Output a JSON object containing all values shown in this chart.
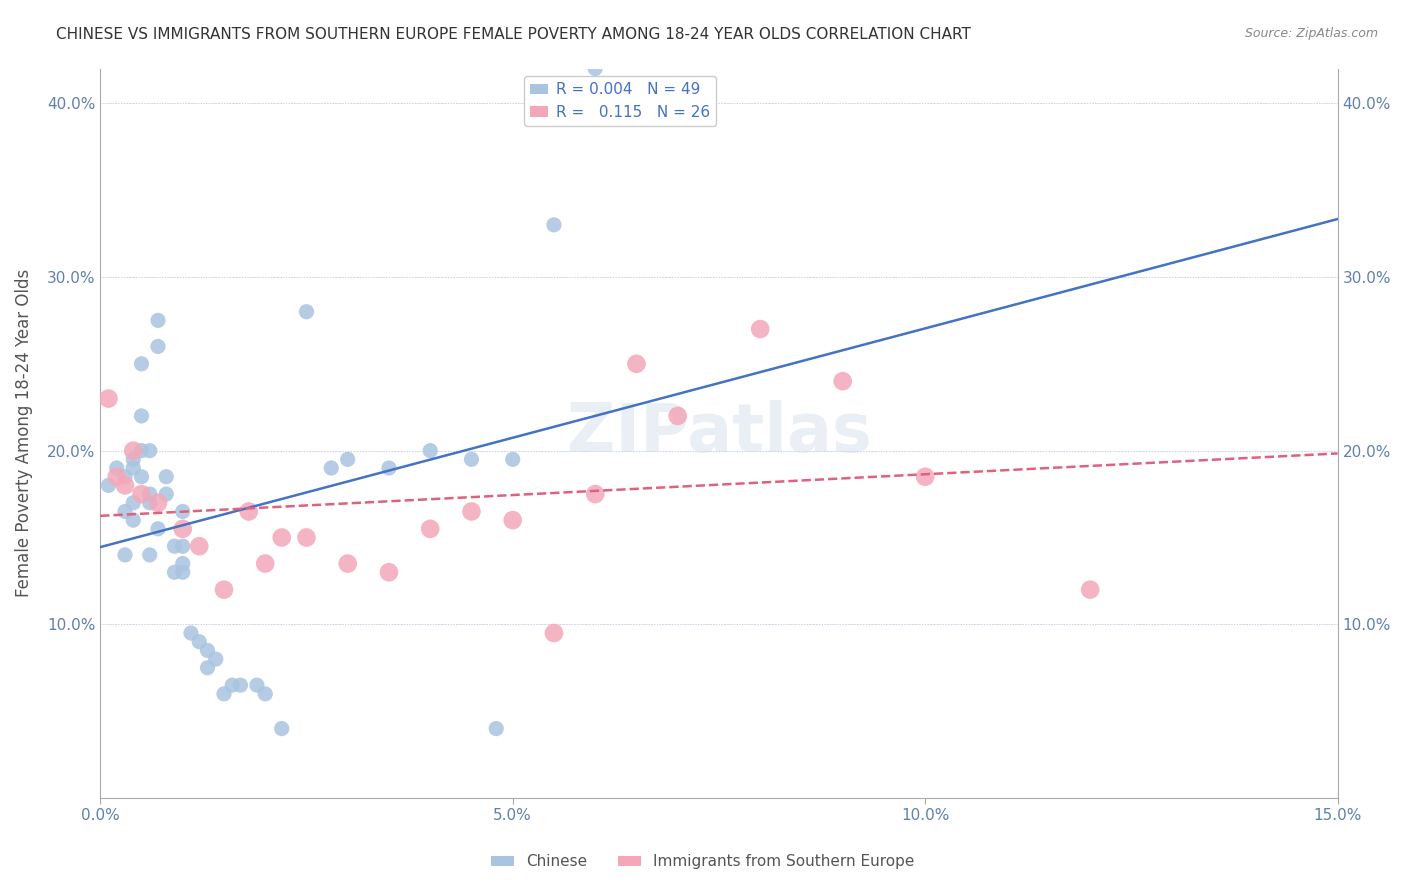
{
  "title": "CHINESE VS IMMIGRANTS FROM SOUTHERN EUROPE FEMALE POVERTY AMONG 18-24 YEAR OLDS CORRELATION CHART",
  "source": "Source: ZipAtlas.com",
  "xlabel": "",
  "ylabel": "Female Poverty Among 18-24 Year Olds",
  "xlim": [
    0.0,
    0.15
  ],
  "ylim": [
    0.0,
    0.42
  ],
  "xticks": [
    0.0,
    0.05,
    0.1,
    0.15
  ],
  "xticklabels": [
    "0.0%",
    "5.0%",
    "10.0%",
    "15.0%"
  ],
  "yticks": [
    0.0,
    0.1,
    0.2,
    0.3,
    0.4
  ],
  "yticklabels": [
    "",
    "10.0%",
    "20.0%",
    "30.0%",
    "40.0%"
  ],
  "chinese_R": 0.004,
  "chinese_N": 49,
  "southern_europe_R": 0.115,
  "southern_europe_N": 26,
  "chinese_color": "#a8c4e0",
  "southern_europe_color": "#f4a7b9",
  "chinese_line_color": "#4472c4",
  "southern_europe_line_color": "#e06080",
  "legend_label_chinese": "Chinese",
  "legend_label_southern": "Immigrants from Southern Europe",
  "watermark": "ZIPatlas",
  "chinese_x": [
    0.001,
    0.002,
    0.003,
    0.003,
    0.003,
    0.004,
    0.004,
    0.004,
    0.004,
    0.005,
    0.005,
    0.005,
    0.005,
    0.006,
    0.006,
    0.006,
    0.006,
    0.007,
    0.007,
    0.007,
    0.008,
    0.008,
    0.009,
    0.009,
    0.01,
    0.01,
    0.01,
    0.01,
    0.011,
    0.012,
    0.013,
    0.013,
    0.014,
    0.015,
    0.016,
    0.017,
    0.019,
    0.02,
    0.022,
    0.025,
    0.028,
    0.03,
    0.035,
    0.04,
    0.045,
    0.048,
    0.05,
    0.055,
    0.06
  ],
  "chinese_y": [
    0.18,
    0.19,
    0.14,
    0.165,
    0.185,
    0.19,
    0.195,
    0.17,
    0.16,
    0.185,
    0.2,
    0.22,
    0.25,
    0.175,
    0.14,
    0.17,
    0.2,
    0.275,
    0.26,
    0.155,
    0.185,
    0.175,
    0.13,
    0.145,
    0.13,
    0.135,
    0.165,
    0.145,
    0.095,
    0.09,
    0.085,
    0.075,
    0.08,
    0.06,
    0.065,
    0.065,
    0.065,
    0.06,
    0.04,
    0.28,
    0.19,
    0.195,
    0.19,
    0.2,
    0.195,
    0.04,
    0.195,
    0.33,
    0.42
  ],
  "southern_x": [
    0.001,
    0.002,
    0.003,
    0.004,
    0.005,
    0.007,
    0.01,
    0.012,
    0.015,
    0.018,
    0.02,
    0.022,
    0.025,
    0.03,
    0.035,
    0.04,
    0.045,
    0.05,
    0.055,
    0.06,
    0.065,
    0.07,
    0.08,
    0.09,
    0.1,
    0.12
  ],
  "southern_y": [
    0.23,
    0.185,
    0.18,
    0.2,
    0.175,
    0.17,
    0.155,
    0.145,
    0.12,
    0.165,
    0.135,
    0.15,
    0.15,
    0.135,
    0.13,
    0.155,
    0.165,
    0.16,
    0.095,
    0.175,
    0.25,
    0.22,
    0.27,
    0.24,
    0.185,
    0.12
  ],
  "background_color": "#ffffff",
  "grid_color": "#d0d8e8",
  "title_color": "#333333",
  "axis_label_color": "#555555",
  "tick_color": "#6080b0"
}
